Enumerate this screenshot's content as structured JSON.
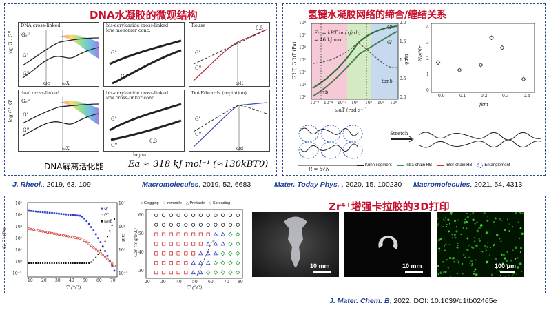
{
  "top_left": {
    "title": "DNA水凝胶的微观结构",
    "subplots": [
      {
        "label": "DNA cross-linked",
        "g1": "G'",
        "g2": "G''",
        "extra": "G₀ᴺ"
      },
      {
        "label": "bis-acrylamide cross-linked\nlow monomer conc.",
        "g1": "G'",
        "g2": "G''"
      },
      {
        "label": "Rouse",
        "g1": "G'",
        "g2": "G''",
        "slope": "0.5",
        "w": "ωR"
      },
      {
        "label": "dual cross-linked",
        "g1": "G'",
        "g2": "G''",
        "extra": "G₀ᴺ"
      },
      {
        "label": "bis-acrylamide cross-linked\nlow cross-linker conc.",
        "g1": "G'",
        "g2": "G''",
        "slope": "0.3"
      },
      {
        "label": "Doi-Edwards (reptation)",
        "g1": "G'",
        "g2": "G''",
        "w": "ωd"
      }
    ],
    "ylabel": "log G', G''",
    "xlabel": "log ω",
    "wc": "ωc",
    "wx": "ωX",
    "bottom_cn": "DNA解离活化能",
    "bottom_eq": "Ea ≈ 318 kJ mol⁻¹ (≈130kBT0)"
  },
  "top_right": {
    "title": "氢键水凝胶网络的缔合/缠结关系",
    "eq1": "Ea = kBT ln (τf/τb)",
    "eq2": "= 46 kJ mol⁻¹",
    "ylabel_left": "G'bT, G''bT (Pa)",
    "ylabel_right": "tanδ",
    "xlabel": "ωaT (rad s⁻¹)",
    "left_ticks": [
      "10⁸",
      "10⁷",
      "10⁶",
      "10⁵",
      "10⁴",
      "10³",
      "10²"
    ],
    "right_ticks": [
      "2.0",
      "1.5",
      "1.0",
      "0.5",
      "0.0"
    ],
    "x_ticks": [
      "10⁻⁶",
      "10⁻⁴",
      "10⁻²",
      "10⁰",
      "10²",
      "10⁴",
      "10⁶"
    ],
    "curve_labels": {
      "g1": "G'",
      "g2": "G''",
      "tan": "tanδ",
      "tb": "τb"
    },
    "scatter": {
      "ylabel": "Ne/Nr",
      "xlabel": "fsm",
      "x_ticks": [
        "0.0",
        "0.1",
        "0.2",
        "0.3",
        "0.4"
      ],
      "y_ticks": [
        "0",
        "1",
        "2",
        "3",
        "4"
      ]
    },
    "schematic": {
      "stretch": "Stretch",
      "r_label": "R = b√N",
      "legend": [
        "Kuhn segment",
        "Intra-chain HB",
        "Inter-chain HB",
        "Entanglement"
      ],
      "legend_colors": [
        "#222222",
        "#2e9e3a",
        "#d0312d",
        "#3a62c8"
      ]
    }
  },
  "refs": [
    {
      "journal": "J. Rheol.",
      "rest": ", 2019, 63, 109"
    },
    {
      "journal": "Macromolecules",
      "rest": ", 2019, 52, 6683"
    },
    {
      "journal": "Mater. Today Phys.",
      "rest": " , 2020, 15, 100230"
    },
    {
      "journal": "Macromolecules",
      "rest": ", 2021, 54, 4313"
    }
  ],
  "bottom": {
    "title": "Zr⁴⁺增强卡拉胶的3D打印",
    "rheo_chart": {
      "legend": [
        "G'",
        "G''",
        "tanδ"
      ],
      "ylabel_left": "G',G'' (Pa)",
      "ylabel_right": "tanδ",
      "xlabel": "T (°C)",
      "x_ticks": [
        "10",
        "20",
        "30",
        "40",
        "50",
        "60",
        "70"
      ],
      "left_ticks": [
        "10⁵",
        "10⁴",
        "10³",
        "10²",
        "10¹",
        "10⁰",
        "10⁻¹"
      ],
      "right_ticks": [
        "10²",
        "10¹",
        "10⁰",
        "10⁻¹"
      ]
    },
    "phase_chart": {
      "legend": [
        "Clogging",
        "Immobile",
        "Printable",
        "Spreading"
      ],
      "legend_colors": [
        "#111111",
        "#d0312d",
        "#2a3fc8",
        "#2e9e3a"
      ],
      "ylabel": "Czr (mg/mL)",
      "xlabel": "T (°C)",
      "x_ticks": [
        "20",
        "30",
        "40",
        "50",
        "60",
        "70",
        "80"
      ],
      "y_ticks": [
        "30",
        "40",
        "50",
        "60"
      ],
      "temps": [
        25,
        30,
        35,
        40,
        45,
        50,
        55,
        60,
        65,
        70,
        75,
        80
      ],
      "concs": [
        30,
        35,
        40,
        45,
        50,
        55,
        60
      ],
      "grid": {
        "60": [
          "o",
          "o",
          "o",
          "o",
          "o",
          "o",
          "o",
          "o",
          "o",
          "o",
          "o",
          "o"
        ],
        "55": [
          "o",
          "o",
          "o",
          "o",
          "o",
          "o",
          "o",
          "o",
          "o",
          "o",
          "o",
          "o"
        ],
        "50": [
          "s",
          "s",
          "s",
          "s",
          "s",
          "s",
          "s",
          "s",
          "t",
          "t",
          "d",
          "d"
        ],
        "45": [
          "s",
          "s",
          "s",
          "s",
          "s",
          "s",
          "s",
          "t",
          "t",
          "t",
          "d",
          "d"
        ],
        "40": [
          "s",
          "s",
          "s",
          "s",
          "s",
          "s",
          "t",
          "t",
          "t",
          "d",
          "d",
          "d"
        ],
        "35": [
          "s",
          "s",
          "s",
          "s",
          "s",
          "t",
          "t",
          "t",
          "d",
          "d",
          "d",
          "d"
        ],
        "30": [
          "s",
          "s",
          "s",
          "s",
          "s",
          "t",
          "t",
          "d",
          "d",
          "d",
          "d",
          "d"
        ]
      }
    },
    "photos": [
      {
        "scale": "10 mm"
      },
      {
        "scale": "10 mm"
      },
      {
        "scale": "100 μm"
      }
    ],
    "ref": {
      "journal": "J. Mater. Chem. B",
      "rest": ", 2022, DOI: 10.1039/d1tb02465e"
    }
  }
}
